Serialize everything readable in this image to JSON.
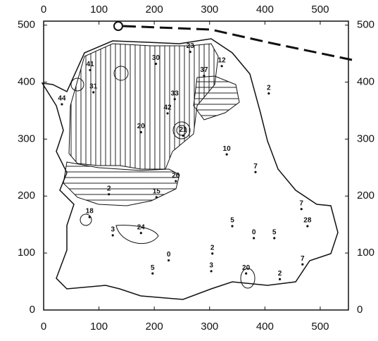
{
  "chart_data": {
    "type": "contour-map",
    "xlim": [
      0,
      551
    ],
    "ylim": [
      0,
      507
    ],
    "xticks": [
      0,
      100,
      200,
      300,
      400,
      500
    ],
    "yticks": [
      0,
      100,
      200,
      300,
      400,
      500
    ],
    "annotations": [
      {
        "x": 203,
        "y": 442,
        "text": "30"
      },
      {
        "x": 265,
        "y": 463,
        "text": "23"
      },
      {
        "x": 322,
        "y": 438,
        "text": "12"
      },
      {
        "x": 290,
        "y": 421,
        "text": "37"
      },
      {
        "x": 407,
        "y": 390,
        "text": "2"
      },
      {
        "x": 84,
        "y": 431,
        "text": "41"
      },
      {
        "x": 90,
        "y": 392,
        "text": "31"
      },
      {
        "x": 33,
        "y": 371,
        "text": "44"
      },
      {
        "x": 237,
        "y": 380,
        "text": "33"
      },
      {
        "x": 224,
        "y": 355,
        "text": "42"
      },
      {
        "x": 176,
        "y": 322,
        "text": "20"
      },
      {
        "x": 252,
        "y": 316,
        "text": "21"
      },
      {
        "x": 331,
        "y": 283,
        "text": "10"
      },
      {
        "x": 383,
        "y": 252,
        "text": "7"
      },
      {
        "x": 204,
        "y": 208,
        "text": "15"
      },
      {
        "x": 239,
        "y": 236,
        "text": "26"
      },
      {
        "x": 83,
        "y": 173,
        "text": "18"
      },
      {
        "x": 176,
        "y": 145,
        "text": "24"
      },
      {
        "x": 118,
        "y": 213,
        "text": "2"
      },
      {
        "x": 125,
        "y": 141,
        "text": "3"
      },
      {
        "x": 226,
        "y": 97,
        "text": "0"
      },
      {
        "x": 341,
        "y": 157,
        "text": "5"
      },
      {
        "x": 380,
        "y": 136,
        "text": "0"
      },
      {
        "x": 417,
        "y": 136,
        "text": "5"
      },
      {
        "x": 477,
        "y": 157,
        "text": "28"
      },
      {
        "x": 466,
        "y": 187,
        "text": "7"
      },
      {
        "x": 366,
        "y": 74,
        "text": "20"
      },
      {
        "x": 427,
        "y": 64,
        "text": "2"
      },
      {
        "x": 468,
        "y": 90,
        "text": "7"
      },
      {
        "x": 305,
        "y": 109,
        "text": "2"
      },
      {
        "x": 197,
        "y": 74,
        "text": "5"
      },
      {
        "x": 303,
        "y": 78,
        "text": "3"
      }
    ]
  }
}
